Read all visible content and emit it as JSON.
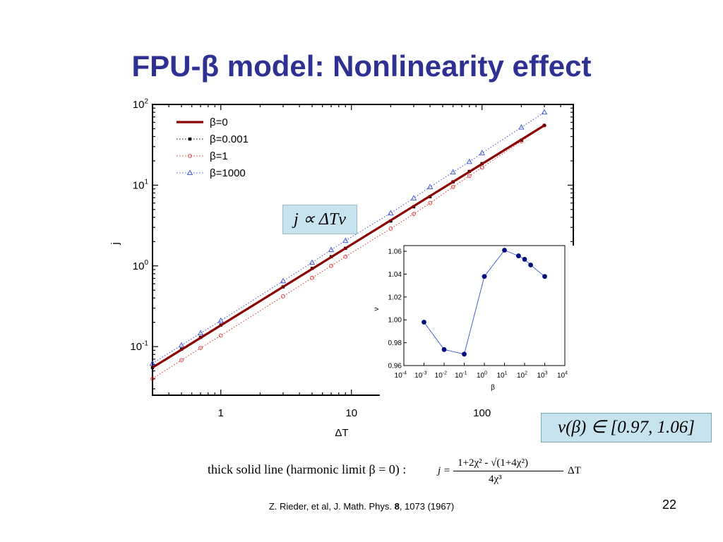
{
  "slide": {
    "title": "FPU-β model: Nonlinearity effect",
    "formula_scaling": "j ∝ ΔTν",
    "formula_range": "ν(β) ∈ [0.97,  1.06]",
    "caption": "thick solid line (harmonic limit β = 0) :",
    "equation_lhs": "j =",
    "equation_numerator": "1+2χ² - √(1+4χ²)",
    "equation_denominator": "4χ³",
    "equation_rhs": "ΔT",
    "citation_prefix": "Z. Rieder, et al,  J. Math. Phys. ",
    "citation_volume": "8",
    "citation_suffix": ", 1073 (1967)",
    "page_number": "22"
  },
  "colors": {
    "title": "#2e3192",
    "beta0": "#8b0000",
    "beta0001": "#000000",
    "beta1": "#e03030",
    "beta1000": "#3a4fd6",
    "inset_points": "#000c7a",
    "formula_bg": "#c7e4ee"
  },
  "chart_data": [
    {
      "type": "line",
      "scale": "log-log",
      "xlabel": "ΔT",
      "ylabel": "j",
      "xlim": [
        0.3,
        500
      ],
      "ylim": [
        0.025,
        100
      ],
      "x_ticks": [
        "1",
        "10",
        "100"
      ],
      "y_ticks": [
        "10-1",
        "100",
        "101",
        "102"
      ],
      "legend_position": "top-left",
      "series": [
        {
          "name": "β=0",
          "style": "thick-solid",
          "x": [
            0.3,
            300
          ],
          "y": [
            0.055,
            55
          ]
        },
        {
          "name": "β=0.001",
          "style": "dotted-square",
          "x": [
            0.3,
            0.5,
            0.7,
            1,
            3,
            5,
            7,
            9,
            20,
            30,
            40,
            60,
            80,
            100,
            200,
            300
          ],
          "y": [
            0.055,
            0.093,
            0.13,
            0.185,
            0.55,
            0.93,
            1.3,
            1.65,
            3.6,
            5.4,
            7.2,
            11,
            14.8,
            18.5,
            36,
            55
          ]
        },
        {
          "name": "β=1",
          "style": "dotted-circle",
          "x": [
            0.3,
            0.5,
            0.7,
            1,
            3,
            5,
            7,
            9,
            20,
            30,
            40,
            60,
            80,
            100,
            200,
            300
          ],
          "y": [
            0.04,
            0.068,
            0.096,
            0.137,
            0.42,
            0.71,
            1.0,
            1.3,
            2.9,
            4.4,
            6.0,
            9.5,
            13,
            16.5,
            35,
            55
          ]
        },
        {
          "name": "β=1000",
          "style": "dotted-triangle",
          "x": [
            0.3,
            0.5,
            0.7,
            1,
            3,
            5,
            7,
            9,
            20,
            30,
            40,
            60,
            80,
            100,
            200,
            300
          ],
          "y": [
            0.062,
            0.104,
            0.147,
            0.21,
            0.65,
            1.1,
            1.58,
            2.05,
            4.5,
            6.9,
            9.5,
            14.5,
            19.5,
            25,
            52,
            80
          ]
        }
      ]
    },
    {
      "type": "scatter",
      "xscale": "log",
      "xlabel": "β",
      "ylabel": "ν",
      "xlim": [
        0.0001,
        10000
      ],
      "ylim": [
        0.96,
        1.065
      ],
      "x_ticks": [
        "10-4",
        "10-3",
        "10-2",
        "10-1",
        "100",
        "101",
        "102",
        "103",
        "104"
      ],
      "y_ticks": [
        "0.96",
        "0.98",
        "1.00",
        "1.02",
        "1.04",
        "1.06"
      ],
      "series": [
        {
          "x": [
            0.001,
            0.01,
            0.1,
            1,
            10,
            50,
            100,
            200,
            1000
          ],
          "y": [
            0.998,
            0.974,
            0.97,
            1.038,
            1.061,
            1.056,
            1.053,
            1.048,
            1.038
          ]
        }
      ]
    }
  ]
}
